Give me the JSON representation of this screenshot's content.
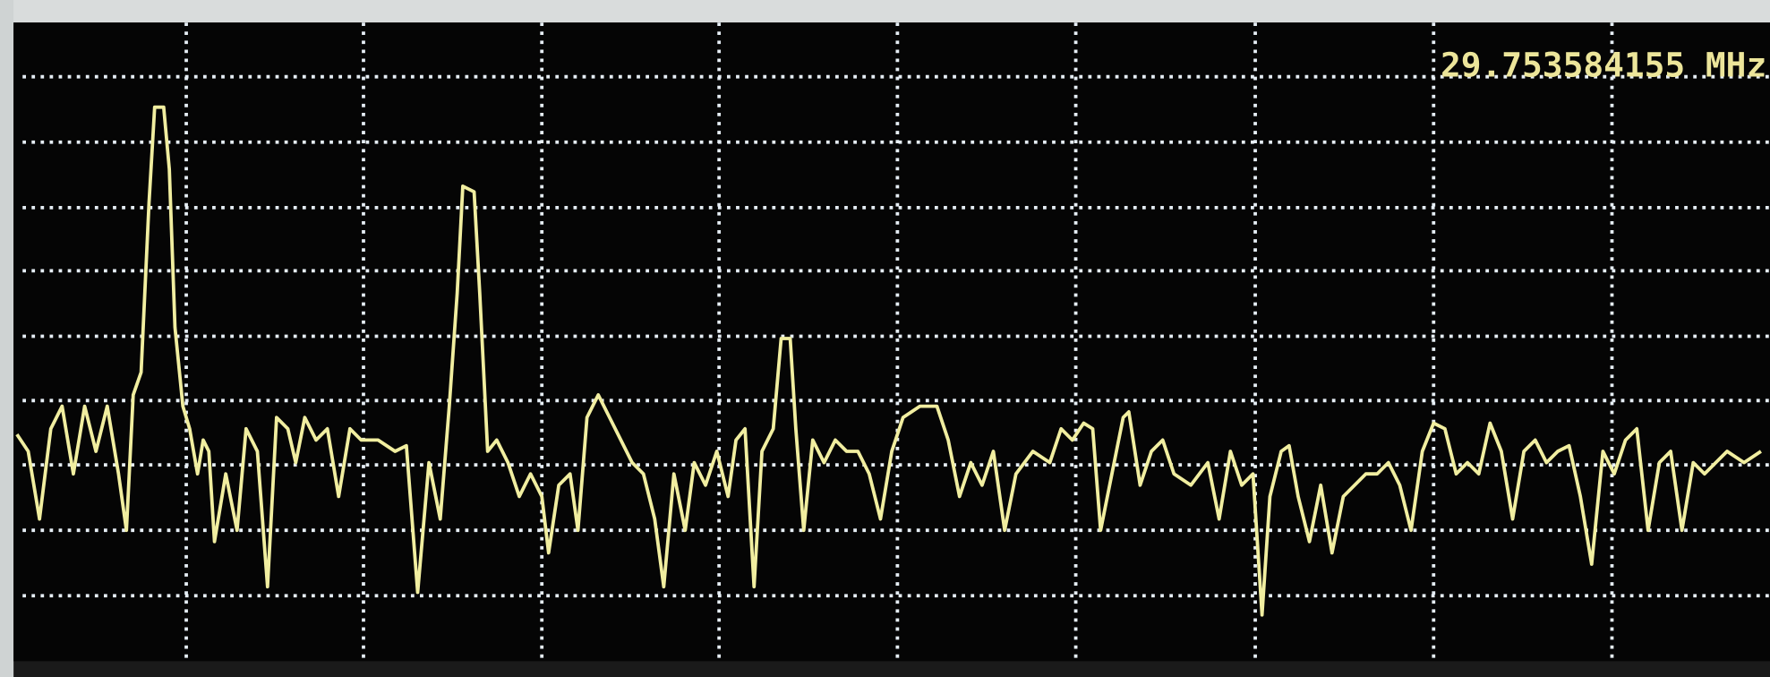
{
  "readout": {
    "frequency": "29.753584155 MHz"
  }
}
